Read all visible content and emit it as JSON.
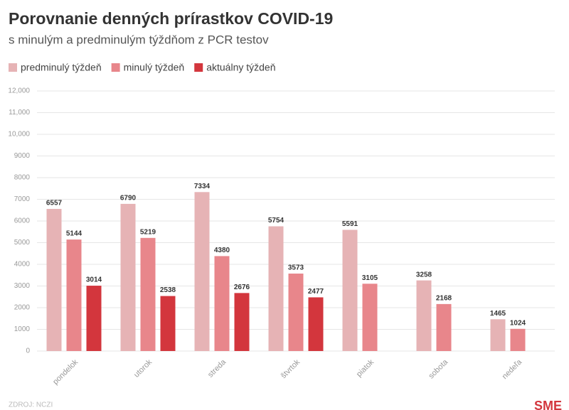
{
  "chart_data": {
    "type": "bar",
    "title": "Porovnanie denných prírastkov COVID-19",
    "subtitle": "s minulým a predminulým týždňom z PCR testov",
    "categories": [
      "pondelok",
      "utorok",
      "streda",
      "štvrtok",
      "piatok",
      "sobota",
      "nedeľa"
    ],
    "series": [
      {
        "name": "predminulý týždeň",
        "color": "#e6b3b5",
        "values": [
          6557,
          6790,
          7334,
          5754,
          5591,
          3258,
          1465
        ]
      },
      {
        "name": "minulý týždeň",
        "color": "#e8868b",
        "values": [
          5144,
          5219,
          4380,
          3573,
          3105,
          2168,
          1024
        ]
      },
      {
        "name": "aktuálny týždeň",
        "color": "#d3363d",
        "values": [
          3014,
          2538,
          2676,
          2477,
          null,
          null,
          null
        ]
      }
    ],
    "ylim": [
      0,
      12000
    ],
    "yticks": [
      0,
      1000,
      2000,
      3000,
      4000,
      5000,
      6000,
      7000,
      8000,
      9000,
      {
        "value": 10000,
        "label": "10,000"
      },
      {
        "value": 11000,
        "label": "11,000"
      },
      {
        "value": 12000,
        "label": "12,000"
      }
    ],
    "grid": true,
    "source": "ZDROJ: NCZI",
    "logo": "SME"
  }
}
